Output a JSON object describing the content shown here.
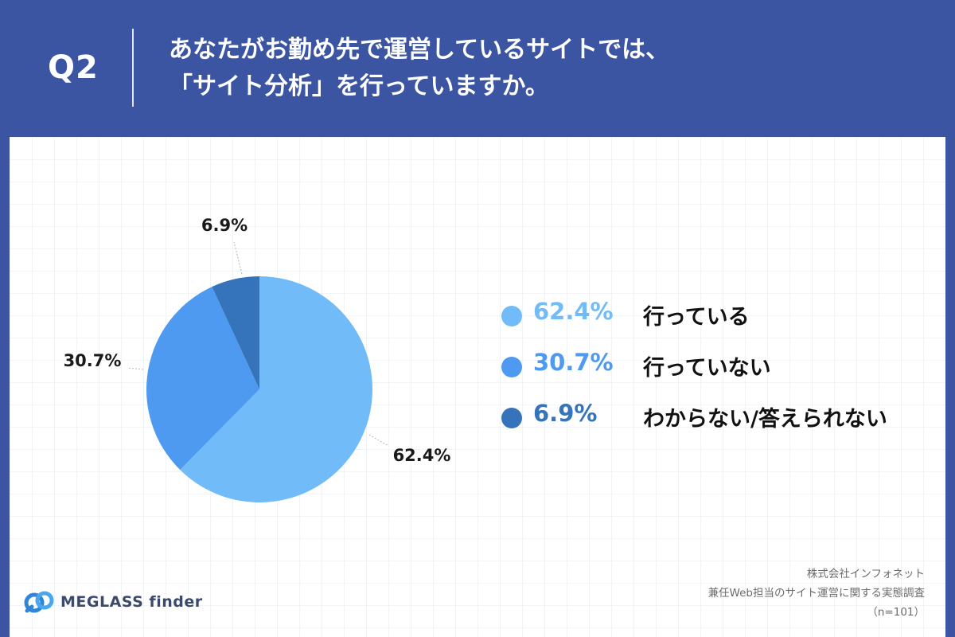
{
  "header": {
    "q_label": "Q2",
    "title_line1": "あなたがお勤め先で運営しているサイトでは、",
    "title_line2": "「サイト分析」を行っていますか。"
  },
  "chart_data": {
    "type": "pie",
    "categories": [
      "行っている",
      "行っていない",
      "わからない/答えられない"
    ],
    "values": [
      62.4,
      30.7,
      6.9
    ],
    "value_labels": [
      "62.4%",
      "30.7%",
      "6.9%"
    ],
    "colors": [
      "#72bbf9",
      "#4d9af0",
      "#3573ba"
    ],
    "start": "12 o'clock",
    "direction": "clockwise",
    "legend_position": "right",
    "n": "(n=101)"
  },
  "legend": [
    {
      "pct": "62.4%",
      "label": "行っている",
      "color": "#72bbf9"
    },
    {
      "pct": "30.7%",
      "label": "行っていない",
      "color": "#4d9af0"
    },
    {
      "pct": "6.9%",
      "label": "わからない/答えられない",
      "color": "#3573ba"
    }
  ],
  "logo": {
    "text": "MEGLASS finder",
    "icon": "meglass-logo-icon"
  },
  "source": {
    "line1": "株式会社インフォネット",
    "line2": "兼任Web担当のサイト運営に関する実態調査",
    "line3": "（n=101）"
  },
  "colors": {
    "background": "#3b55a3",
    "panel": "#ffffff"
  }
}
